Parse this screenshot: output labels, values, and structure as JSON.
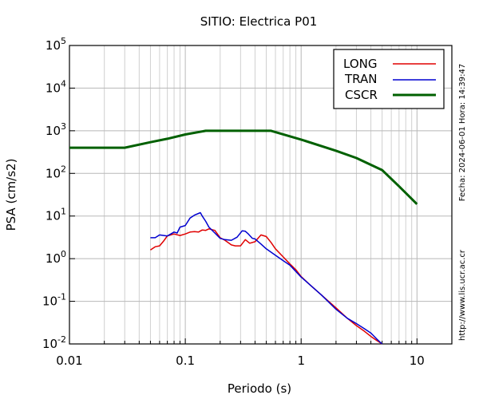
{
  "chart_data": {
    "type": "line",
    "title": "SITIO: Electrica P01",
    "xlabel": "Periodo (s)",
    "ylabel": "PSA (cm/s2)",
    "xscale": "log",
    "yscale": "log",
    "xlim": [
      0.01,
      20
    ],
    "ylim": [
      0.01,
      100000
    ],
    "grid": true,
    "legend_position": "top-right",
    "x_ticks": [
      {
        "value": 0.01,
        "label": "0.01"
      },
      {
        "value": 0.1,
        "label": "0.1"
      },
      {
        "value": 1,
        "label": "1"
      },
      {
        "value": 10,
        "label": "10"
      }
    ],
    "y_ticks": [
      {
        "value": 0.01,
        "base": "10",
        "exp": "-2"
      },
      {
        "value": 0.1,
        "base": "10",
        "exp": "-1"
      },
      {
        "value": 1,
        "base": "10",
        "exp": "0"
      },
      {
        "value": 10,
        "base": "10",
        "exp": "1"
      },
      {
        "value": 100,
        "base": "10",
        "exp": "2"
      },
      {
        "value": 1000,
        "base": "10",
        "exp": "3"
      },
      {
        "value": 10000,
        "base": "10",
        "exp": "4"
      },
      {
        "value": 100000,
        "base": "10",
        "exp": "5"
      }
    ],
    "series": [
      {
        "name": "LONG",
        "color": "#e00000",
        "width": 1.5,
        "points": [
          [
            0.05,
            1.6
          ],
          [
            0.055,
            1.9
          ],
          [
            0.06,
            2.0
          ],
          [
            0.065,
            2.6
          ],
          [
            0.07,
            3.4
          ],
          [
            0.08,
            3.8
          ],
          [
            0.09,
            3.5
          ],
          [
            0.1,
            3.8
          ],
          [
            0.11,
            4.2
          ],
          [
            0.12,
            4.3
          ],
          [
            0.13,
            4.2
          ],
          [
            0.14,
            4.7
          ],
          [
            0.15,
            4.6
          ],
          [
            0.16,
            5.0
          ],
          [
            0.18,
            4.6
          ],
          [
            0.2,
            3.1
          ],
          [
            0.22,
            2.7
          ],
          [
            0.25,
            2.1
          ],
          [
            0.27,
            2.0
          ],
          [
            0.3,
            2.0
          ],
          [
            0.33,
            2.8
          ],
          [
            0.36,
            2.3
          ],
          [
            0.4,
            2.5
          ],
          [
            0.45,
            3.6
          ],
          [
            0.5,
            3.3
          ],
          [
            0.55,
            2.4
          ],
          [
            0.6,
            1.7
          ],
          [
            0.7,
            1.1
          ],
          [
            0.8,
            0.75
          ],
          [
            0.9,
            0.55
          ],
          [
            1.0,
            0.38
          ],
          [
            1.2,
            0.24
          ],
          [
            1.5,
            0.14
          ],
          [
            2.0,
            0.07
          ],
          [
            2.5,
            0.04
          ],
          [
            3.0,
            0.027
          ],
          [
            3.5,
            0.02
          ],
          [
            4.0,
            0.015
          ],
          [
            4.5,
            0.012
          ],
          [
            5.0,
            0.01
          ]
        ]
      },
      {
        "name": "TRAN",
        "color": "#0000d0",
        "width": 1.5,
        "points": [
          [
            0.05,
            3.1
          ],
          [
            0.055,
            3.1
          ],
          [
            0.06,
            3.6
          ],
          [
            0.07,
            3.4
          ],
          [
            0.075,
            3.8
          ],
          [
            0.08,
            4.2
          ],
          [
            0.085,
            4.0
          ],
          [
            0.09,
            5.5
          ],
          [
            0.1,
            6.0
          ],
          [
            0.11,
            9.0
          ],
          [
            0.12,
            10.5
          ],
          [
            0.13,
            11.5
          ],
          [
            0.135,
            12.0
          ],
          [
            0.14,
            10.0
          ],
          [
            0.15,
            7.5
          ],
          [
            0.16,
            5.5
          ],
          [
            0.18,
            4.0
          ],
          [
            0.2,
            3.0
          ],
          [
            0.22,
            2.8
          ],
          [
            0.25,
            2.7
          ],
          [
            0.28,
            3.2
          ],
          [
            0.31,
            4.5
          ],
          [
            0.33,
            4.4
          ],
          [
            0.35,
            3.8
          ],
          [
            0.38,
            3.0
          ],
          [
            0.4,
            2.9
          ],
          [
            0.45,
            2.2
          ],
          [
            0.5,
            1.7
          ],
          [
            0.6,
            1.2
          ],
          [
            0.7,
            0.9
          ],
          [
            0.8,
            0.7
          ],
          [
            0.9,
            0.5
          ],
          [
            1.0,
            0.37
          ],
          [
            1.2,
            0.24
          ],
          [
            1.5,
            0.14
          ],
          [
            2.0,
            0.065
          ],
          [
            2.5,
            0.04
          ],
          [
            3.0,
            0.03
          ],
          [
            3.5,
            0.023
          ],
          [
            4.0,
            0.018
          ],
          [
            4.5,
            0.013
          ],
          [
            5.0,
            0.01
          ]
        ]
      },
      {
        "name": "CSCR",
        "color": "#006000",
        "width": 3,
        "points": [
          [
            0.01,
            400
          ],
          [
            0.03,
            400
          ],
          [
            0.05,
            540
          ],
          [
            0.07,
            650
          ],
          [
            0.1,
            820
          ],
          [
            0.15,
            1000
          ],
          [
            0.55,
            1000
          ],
          [
            1.0,
            620
          ],
          [
            2.0,
            340
          ],
          [
            3.0,
            230
          ],
          [
            5.0,
            120
          ],
          [
            7.0,
            50
          ],
          [
            10.0,
            19
          ]
        ]
      }
    ]
  },
  "side_text": {
    "right_top": "Fecha: 2024-06-01  Hora: 14:39:47",
    "right_bottom": "http://www.lis.ucr.ac.cr"
  }
}
